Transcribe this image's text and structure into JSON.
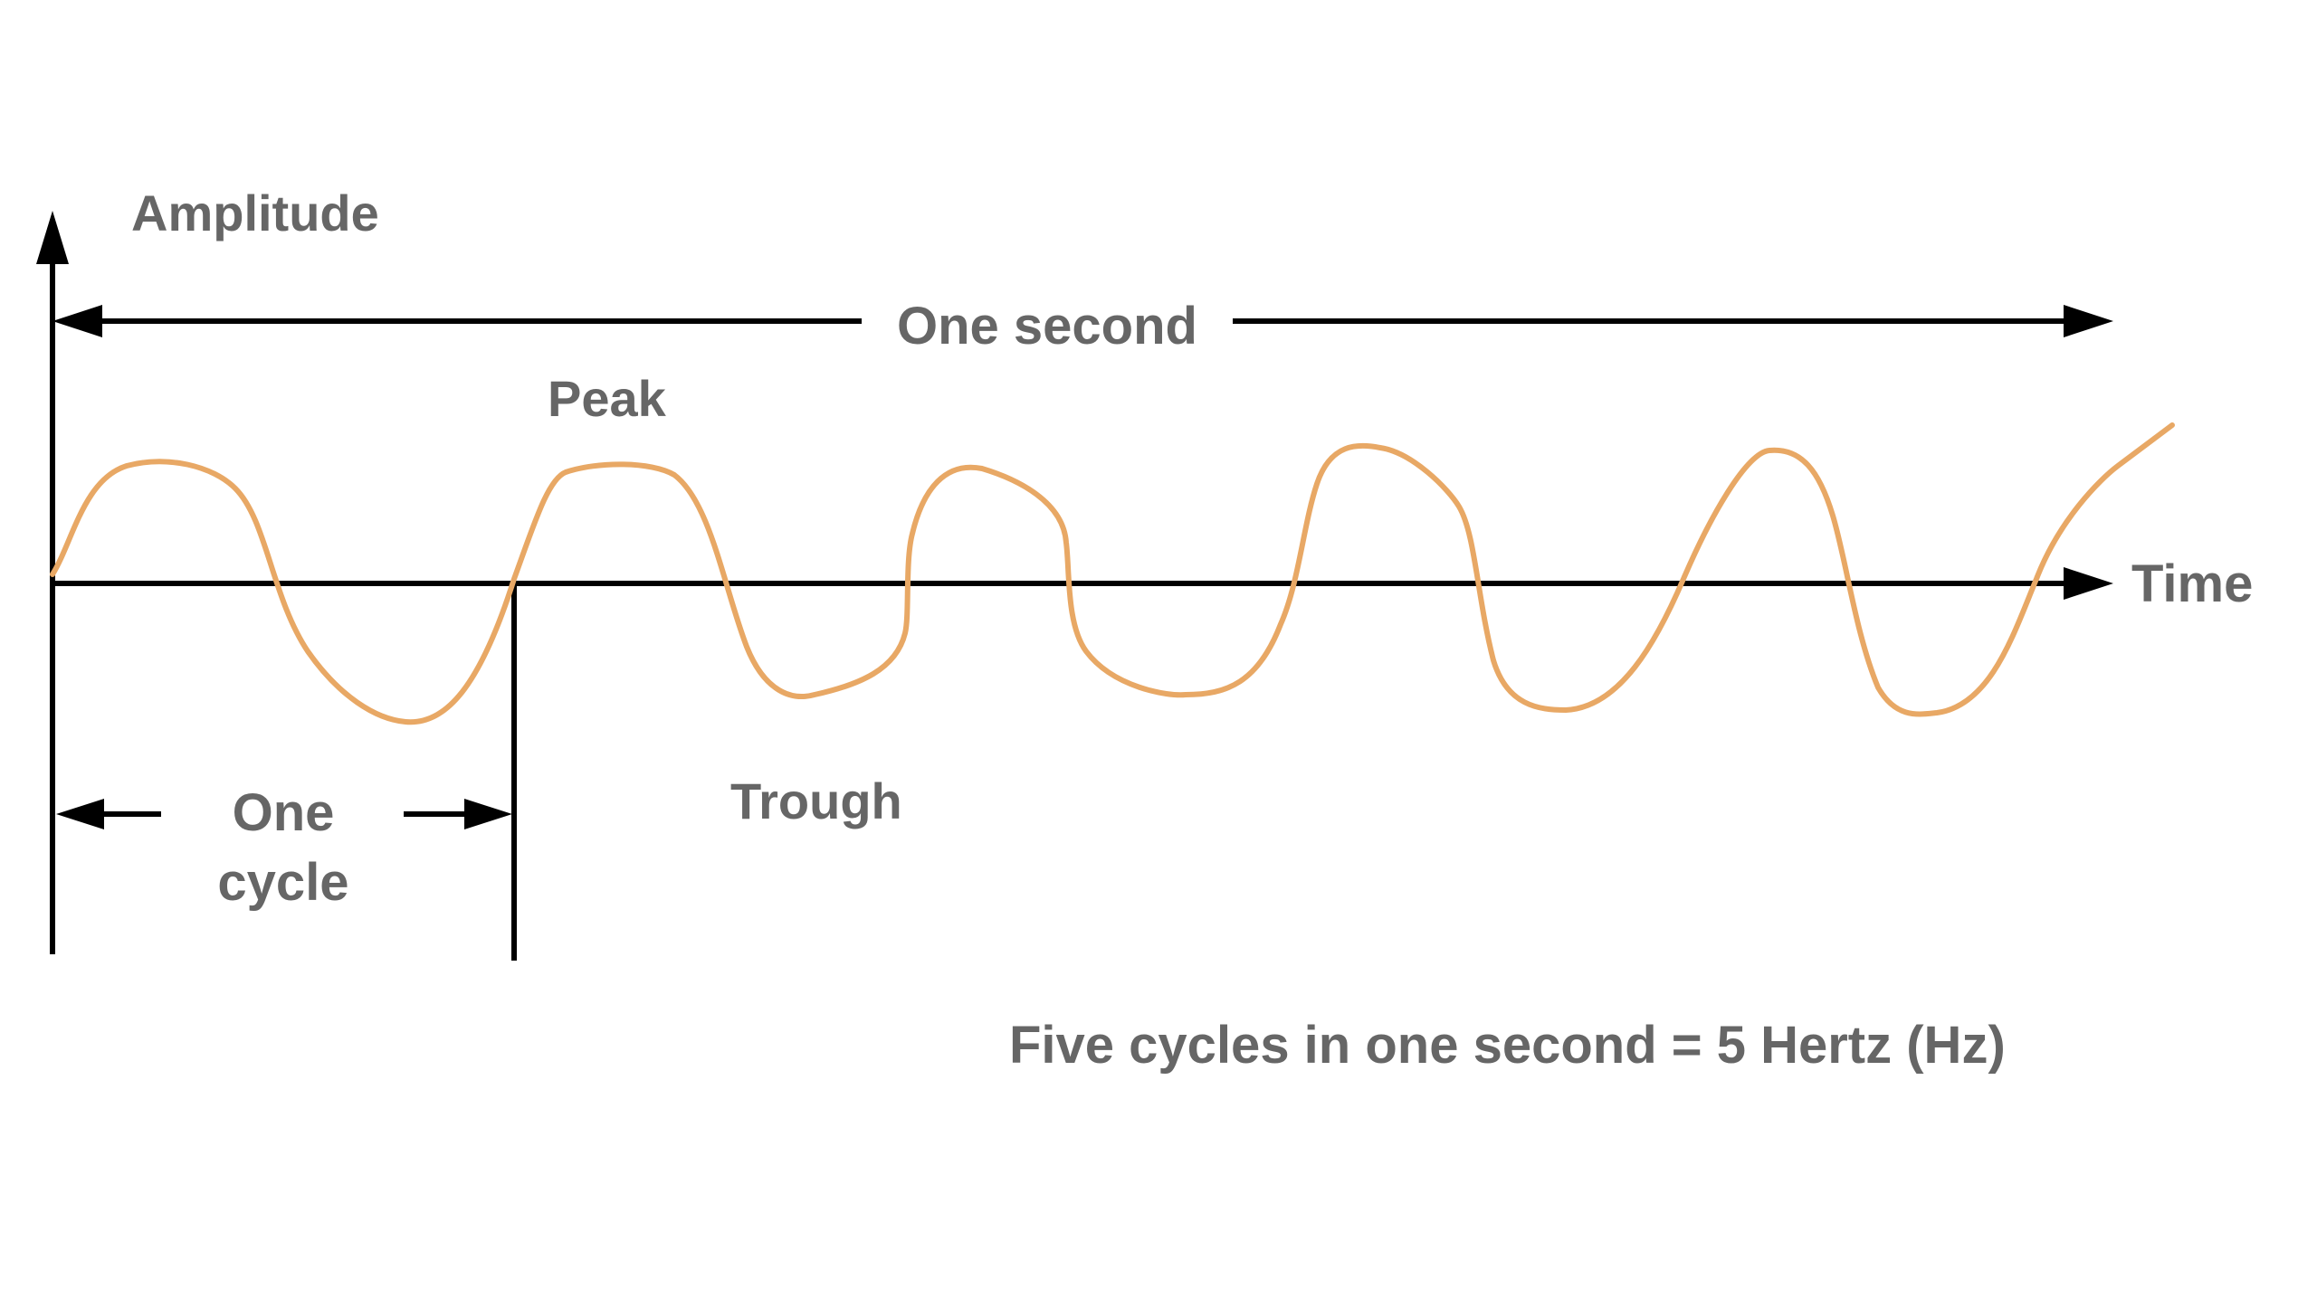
{
  "labels": {
    "amplitude": "Amplitude",
    "one_second": "One second",
    "peak": "Peak",
    "time": "Time",
    "trough": "Trough",
    "one_cycle_line1": "One",
    "one_cycle_line2": "cycle",
    "caption": "Five cycles in one second = 5 Hertz (Hz)"
  },
  "colors": {
    "wave": "#E8A865",
    "axis": "#000000",
    "text": "#666666",
    "background": "#FFFFFF"
  }
}
